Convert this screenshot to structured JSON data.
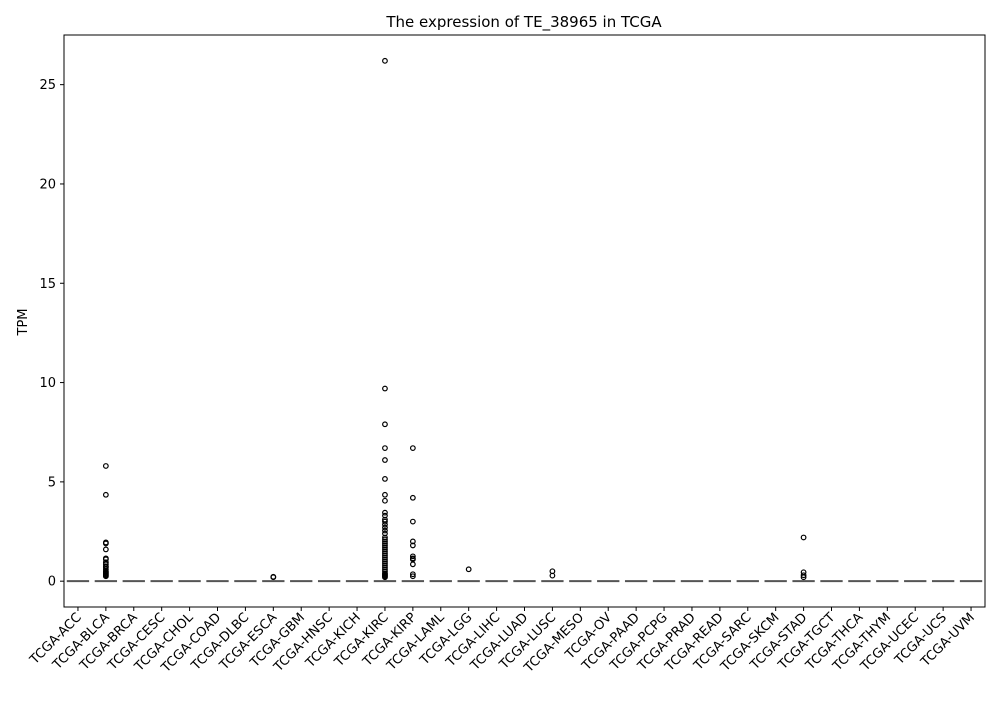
{
  "chart_data": {
    "type": "box",
    "title": "The expression of TE_38965 in TCGA",
    "xlabel": "",
    "ylabel": "TPM",
    "ylim": [
      -1.3,
      27.5
    ],
    "yticks": [
      0,
      5,
      10,
      15,
      20,
      25
    ],
    "grid": false,
    "categories": [
      "TCGA-ACC",
      "TCGA-BLCA",
      "TCGA-BRCA",
      "TCGA-CESC",
      "TCGA-CHOL",
      "TCGA-COAD",
      "TCGA-DLBC",
      "TCGA-ESCA",
      "TCGA-GBM",
      "TCGA-HNSC",
      "TCGA-KICH",
      "TCGA-KIRC",
      "TCGA-KIRP",
      "TCGA-LAML",
      "TCGA-LGG",
      "TCGA-LIHC",
      "TCGA-LUAD",
      "TCGA-LUSC",
      "TCGA-MESO",
      "TCGA-OV",
      "TCGA-PAAD",
      "TCGA-PCPG",
      "TCGA-PRAD",
      "TCGA-READ",
      "TCGA-SARC",
      "TCGA-SKCM",
      "TCGA-STAD",
      "TCGA-TGCT",
      "TCGA-THCA",
      "TCGA-THYM",
      "TCGA-UCEC",
      "TCGA-UCS",
      "TCGA-UVM"
    ],
    "medians": [
      0,
      0,
      0,
      0,
      0,
      0,
      0,
      0,
      0,
      0,
      0,
      0,
      0,
      0,
      0,
      0,
      0,
      0,
      0,
      0,
      0,
      0,
      0,
      0,
      0,
      0,
      0,
      0,
      0,
      0,
      0,
      0,
      0
    ],
    "outliers": [
      [],
      [
        5.8,
        4.35,
        1.95,
        1.9,
        1.6,
        1.15,
        1.1,
        0.95,
        0.85,
        0.75,
        0.7,
        0.6,
        0.5,
        0.45,
        0.4,
        0.35,
        0.3,
        0.25
      ],
      [],
      [],
      [],
      [],
      [],
      [
        0.22,
        0.2
      ],
      [],
      [],
      [],
      [
        26.2,
        9.7,
        7.9,
        6.7,
        6.1,
        5.15,
        4.35,
        4.05,
        3.45,
        3.3,
        3.1,
        3.0,
        2.85,
        2.7,
        2.55,
        2.4,
        2.2,
        2.1,
        2.0,
        1.9,
        1.8,
        1.7,
        1.6,
        1.5,
        1.4,
        1.3,
        1.2,
        1.1,
        1.0,
        0.9,
        0.8,
        0.7,
        0.6,
        0.5,
        0.4,
        0.35,
        0.3,
        0.25,
        0.2
      ],
      [
        6.7,
        4.2,
        3.0,
        2.0,
        1.8,
        1.25,
        1.15,
        1.1,
        0.85,
        0.35,
        0.25
      ],
      [],
      [
        0.6
      ],
      [],
      [],
      [
        0.5,
        0.28
      ],
      [],
      [],
      [],
      [],
      [],
      [],
      [],
      [],
      [
        2.2,
        0.45,
        0.3,
        0.2
      ],
      [],
      [],
      [],
      [],
      [],
      []
    ]
  }
}
